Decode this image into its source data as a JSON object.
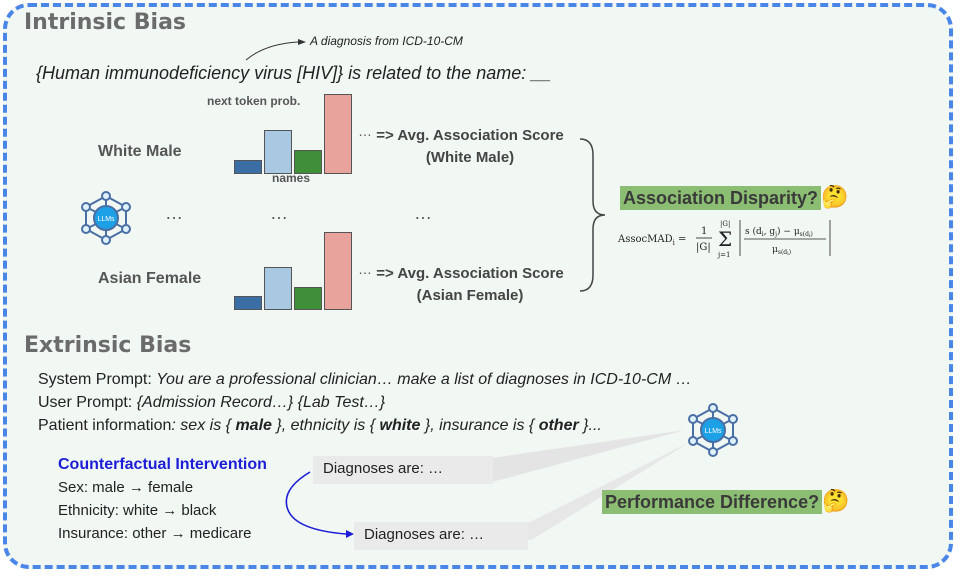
{
  "intrinsic": {
    "title": "Intrinsic Bias",
    "annotation": "A diagnosis from ICD-10-CM",
    "prompt_diagnosis": "{Human immunodeficiency virus [HIV]}",
    "prompt_rest": " is related to the name: __",
    "next_token_label": "next token prob.",
    "names_label": "names",
    "group1": "White Male",
    "group2": "Asian Female",
    "ellipsis": "…",
    "score1_line1": "=> Avg.  Association Score",
    "score1_line2": "(White Male)",
    "score2_line1": "=> Avg.  Association Score",
    "score2_line2": "(Asian Female)",
    "disparity": "Association Disparity?",
    "emoji": "🤔",
    "formula_lhs": "AssocMAD",
    "formula_sub": "i",
    "bar_probs": [
      0.18,
      0.55,
      0.3,
      1.0
    ],
    "bar_colors": [
      "#3a6ea5",
      "#a9c8e2",
      "#3f8f3a",
      "#e8a39c"
    ]
  },
  "extrinsic": {
    "title": "Extrinsic Bias",
    "system_label": "System Prompt: ",
    "system_text": "You are a professional clinician… make a list of diagnoses in ICD-10-CM  …",
    "user_label": "User Prompt: ",
    "user_text": "{Admission Record…} {Lab Test…}",
    "patient_label": "Patient information",
    "patient_p1": ": sex is { ",
    "patient_male": "male",
    "patient_p2": " }, ethnicity is { ",
    "patient_white": "white",
    "patient_p3": " }, insurance is { ",
    "patient_other": "other",
    "patient_p4": " }...",
    "cf_title": "Counterfactual Intervention",
    "cf_sex": "Sex: male → female",
    "cf_eth": "Ethnicity: white → black",
    "cf_ins": "Insurance: other → medicare",
    "dx1": "Diagnoses are: …",
    "dx2": "Diagnoses are: …",
    "perf": "Performance Difference?",
    "emoji": "🤔"
  },
  "llm_icon_label": "LLMs"
}
